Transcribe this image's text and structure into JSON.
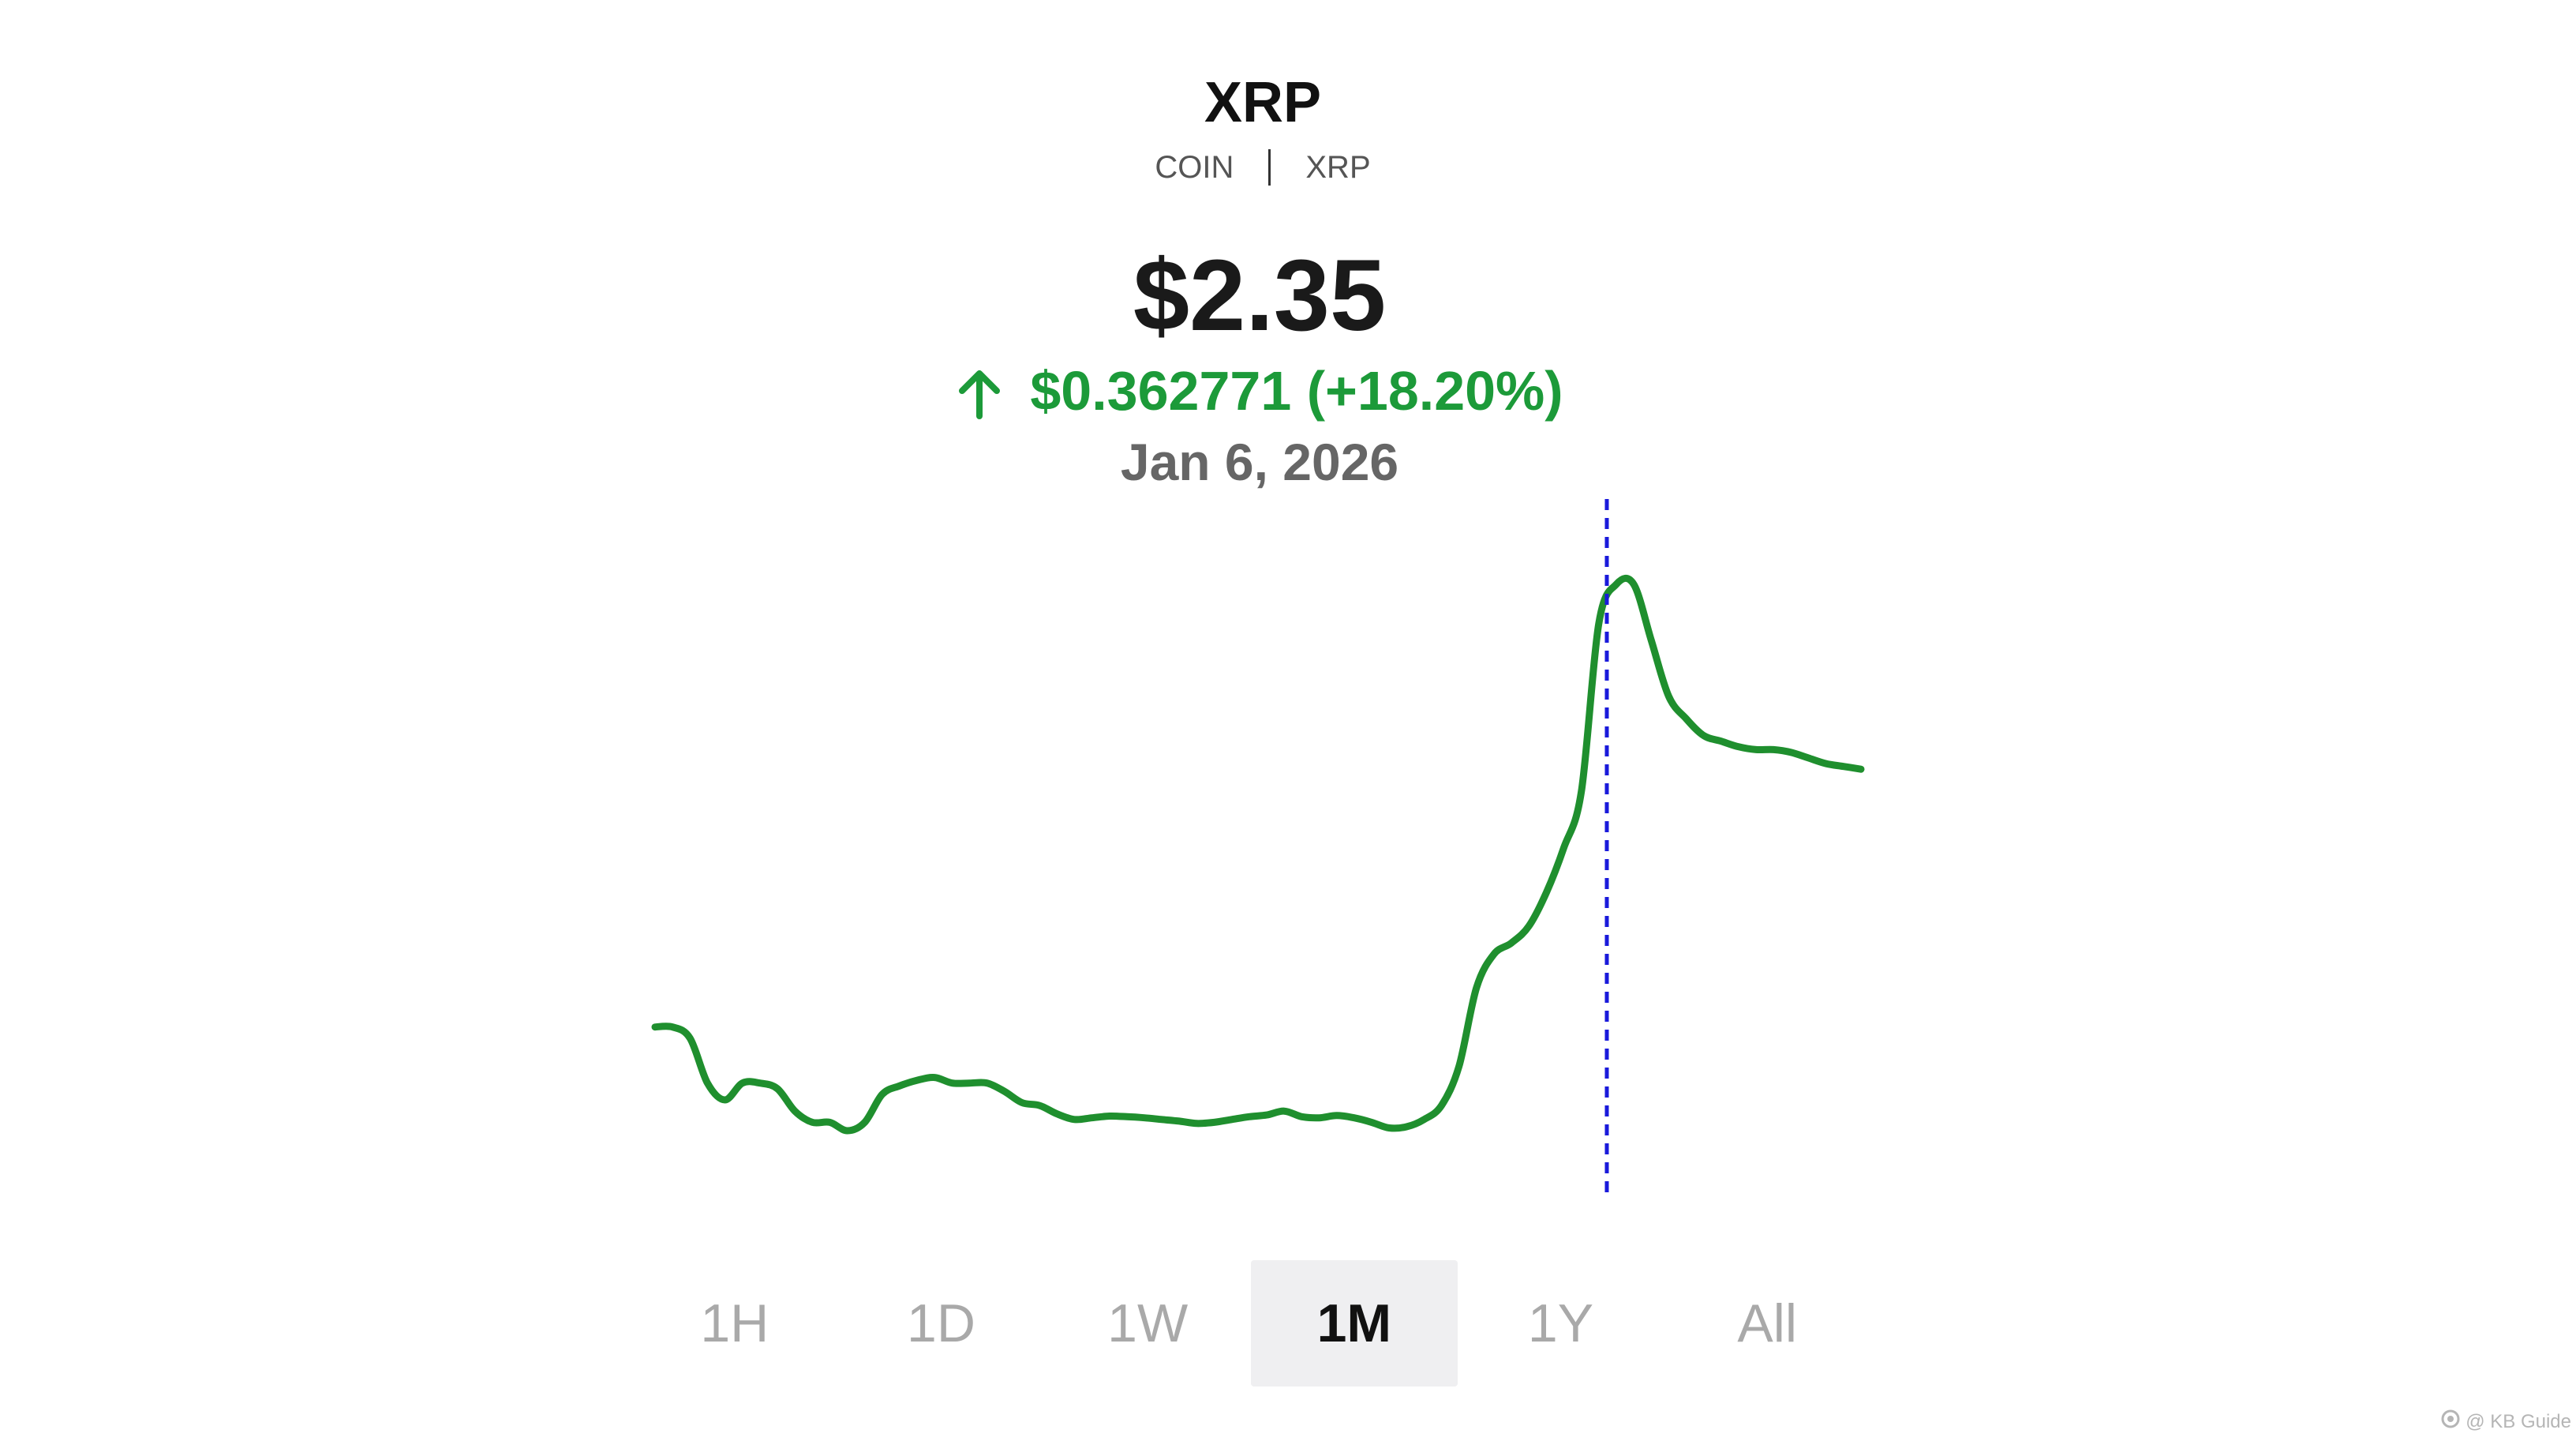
{
  "asset": {
    "name": "XRP",
    "type_label": "COIN",
    "ticker": "XRP"
  },
  "quote": {
    "price": "$2.35",
    "change": "$0.362771 (+18.20%)",
    "direction": "up",
    "date": "Jan 6, 2026"
  },
  "colors": {
    "line": "#1f8f2e",
    "positive": "#1c9a39",
    "crosshair": "#1a1adb",
    "active_tab_bg": "#efeff1"
  },
  "time_ranges": [
    {
      "label": "1H",
      "active": false
    },
    {
      "label": "1D",
      "active": false
    },
    {
      "label": "1W",
      "active": false
    },
    {
      "label": "1M",
      "active": true
    },
    {
      "label": "1Y",
      "active": false
    },
    {
      "label": "All",
      "active": false
    }
  ],
  "watermark": "@ KB Guide",
  "chart_data": {
    "type": "line",
    "series": [
      {
        "values": [
          1.93,
          1.93,
          1.91,
          1.83,
          1.8,
          1.83,
          1.83,
          1.82,
          1.78,
          1.76,
          1.76,
          1.745,
          1.76,
          1.81,
          1.825,
          1.835,
          1.84,
          1.83,
          1.83,
          1.83,
          1.815,
          1.795,
          1.79,
          1.775,
          1.765,
          1.768,
          1.771,
          1.77,
          1.768,
          1.765,
          1.762,
          1.758,
          1.76,
          1.765,
          1.77,
          1.773,
          1.78,
          1.77,
          1.768,
          1.772,
          1.768,
          1.76,
          1.75,
          1.752,
          1.765,
          1.79,
          1.86,
          2.0,
          2.06,
          2.08,
          2.11,
          2.17,
          2.25,
          2.35,
          2.65,
          2.72,
          2.72,
          2.62,
          2.52,
          2.48,
          2.45,
          2.44,
          2.43,
          2.425,
          2.425,
          2.42,
          2.41,
          2.4,
          2.395,
          2.39
        ]
      }
    ],
    "crosshair_date": "Jan 6, 2026",
    "crosshair_value": 2.35,
    "grid": false,
    "axes_visible": false
  }
}
